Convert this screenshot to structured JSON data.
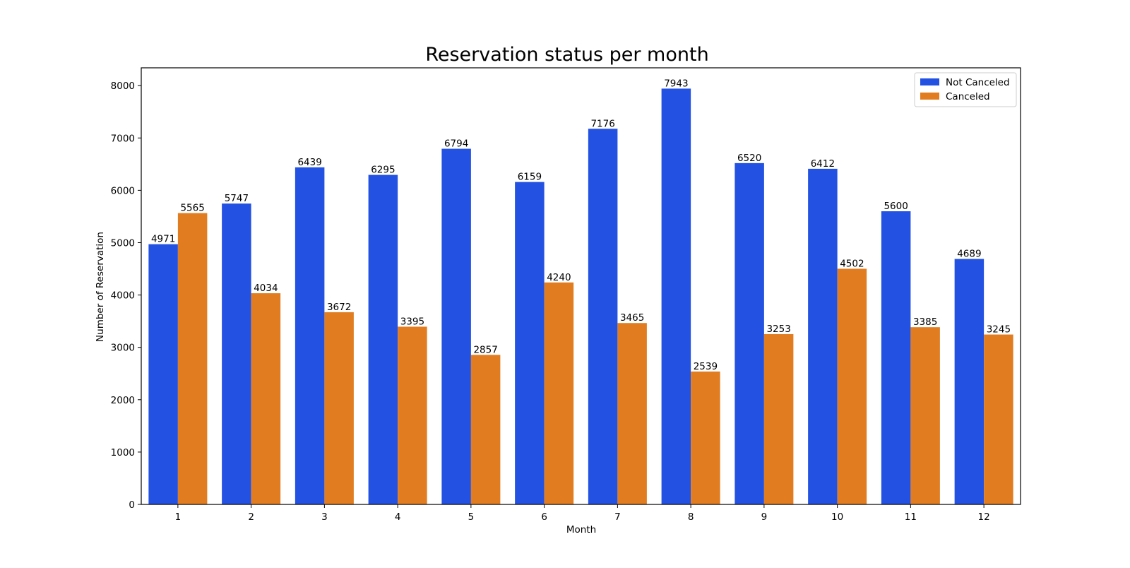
{
  "chart_data": {
    "type": "bar",
    "title": "Reservation status per month",
    "xlabel": "Month",
    "ylabel": "Number of Reservation",
    "categories": [
      "1",
      "2",
      "3",
      "4",
      "5",
      "6",
      "7",
      "8",
      "9",
      "10",
      "11",
      "12"
    ],
    "series": [
      {
        "name": "Not Canceled",
        "color": "#2351e1",
        "values": [
          4971,
          5747,
          6439,
          6295,
          6794,
          6159,
          7176,
          7943,
          6520,
          6412,
          5600,
          4689
        ]
      },
      {
        "name": "Canceled",
        "color": "#e17d20",
        "values": [
          5565,
          4034,
          3672,
          3395,
          2857,
          4240,
          3465,
          2539,
          3253,
          4502,
          3385,
          3245
        ]
      }
    ],
    "ylim": [
      0,
      8340
    ],
    "yticks": [
      0,
      1000,
      2000,
      3000,
      4000,
      5000,
      6000,
      7000,
      8000
    ],
    "grid": false,
    "legend_position": "top-right",
    "data_labels": true
  }
}
